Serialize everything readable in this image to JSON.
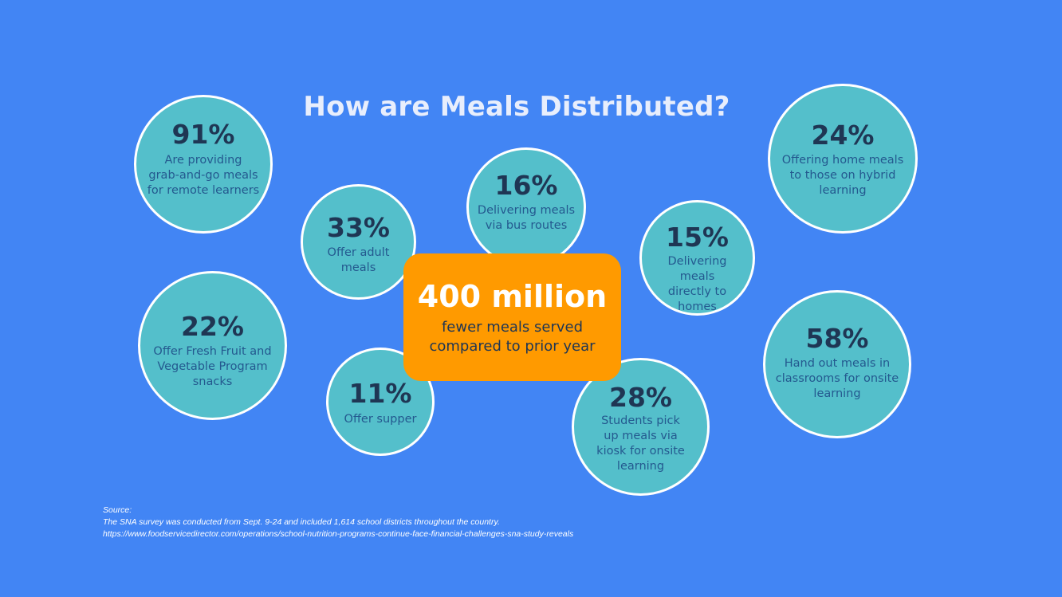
{
  "title": "How are Meals Distributed?",
  "center": {
    "value": "400 million",
    "description": "fewer meals served\ncompared to prior year"
  },
  "stats": [
    {
      "percent": "91%",
      "description": "Are providing\ngrab-and-go meals\nfor remote learners"
    },
    {
      "percent": "33%",
      "description": "Offer adult\nmeals"
    },
    {
      "percent": "16%",
      "description": "Delivering meals\nvia bus routes"
    },
    {
      "percent": "24%",
      "description": "Offering home meals\nto those on hybrid\nlearning"
    },
    {
      "percent": "15%",
      "description": "Delivering meals\ndirectly to homes"
    },
    {
      "percent": "22%",
      "description": "Offer Fresh Fruit and\nVegetable Program\nsnacks"
    },
    {
      "percent": "11%",
      "description": "Offer supper"
    },
    {
      "percent": "28%",
      "description": "Students pick\nup meals via\nkiosk for onsite\nlearning"
    },
    {
      "percent": "58%",
      "description": "Hand out meals in\nclassrooms for onsite\nlearning"
    }
  ],
  "source": {
    "label": "Source:",
    "line1": "The SNA survey was conducted from Sept. 9-24 and included 1,614 school districts throughout the country.",
    "line2": "https://www.foodservicedirector.com/operations/school-nutrition-programs-continue-face-financial-challenges-sna-study-reveals"
  }
}
